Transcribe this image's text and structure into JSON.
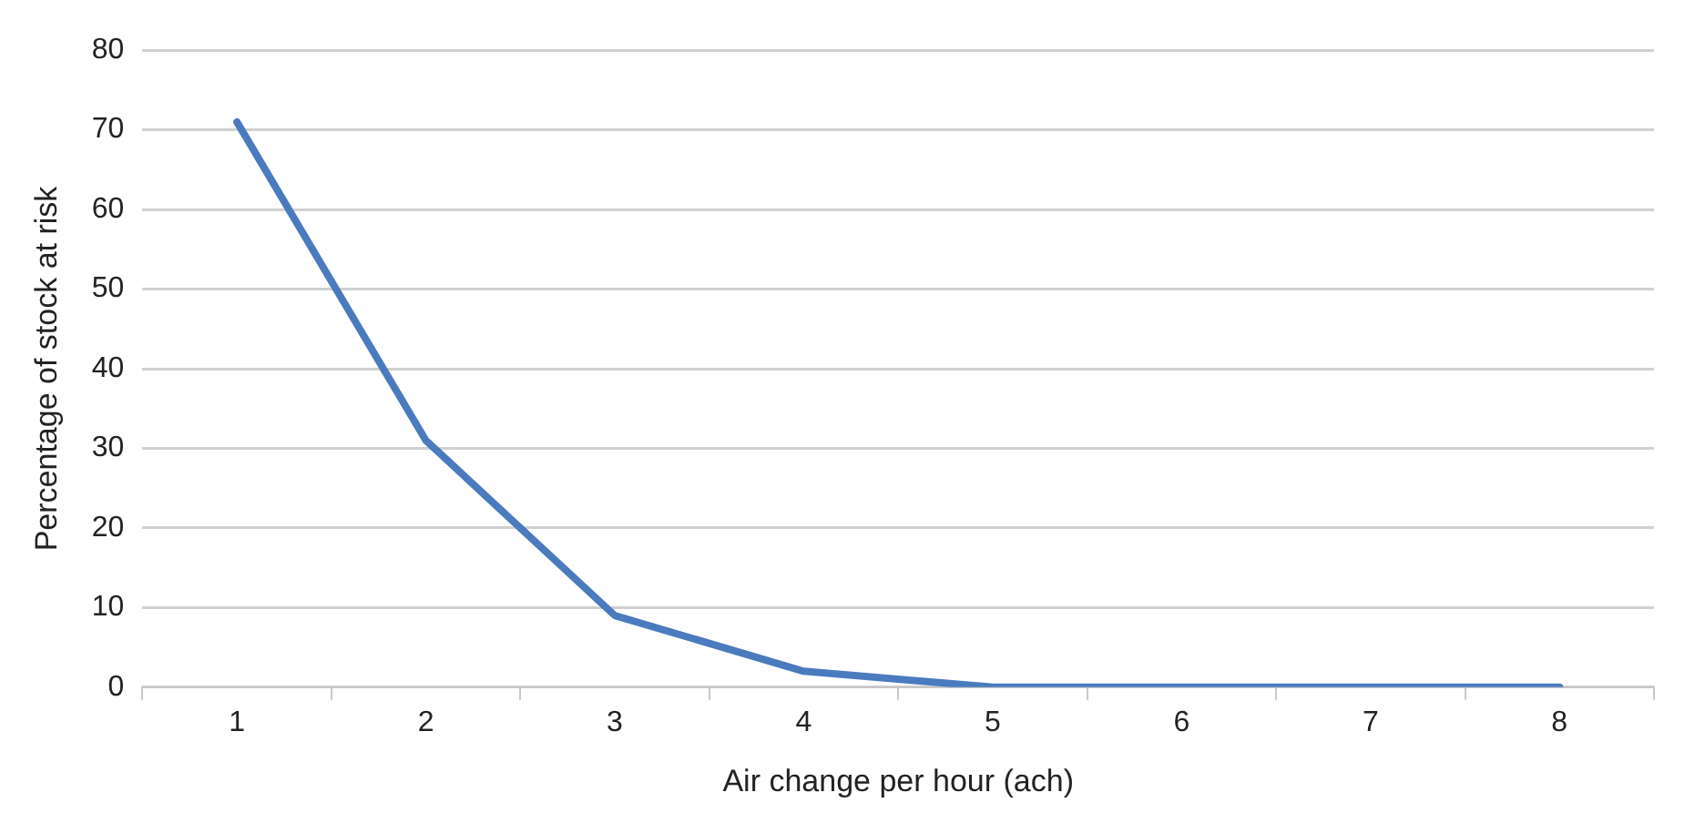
{
  "chart_data": {
    "type": "line",
    "xlabel": "Air change per hour (ach)",
    "ylabel": "Percentage of stock at risk",
    "categories": [
      "1",
      "2",
      "3",
      "4",
      "5",
      "6",
      "7",
      "8"
    ],
    "series": [
      {
        "color": "#4a7bbf",
        "values": [
          71,
          31,
          9,
          2,
          0,
          0,
          0,
          0
        ]
      }
    ],
    "ylim": [
      0,
      80
    ],
    "yticks": [
      0,
      10,
      20,
      30,
      40,
      50,
      60,
      70,
      80
    ],
    "grid": "y",
    "legend": false,
    "marker": "none",
    "line_style": "solid"
  }
}
